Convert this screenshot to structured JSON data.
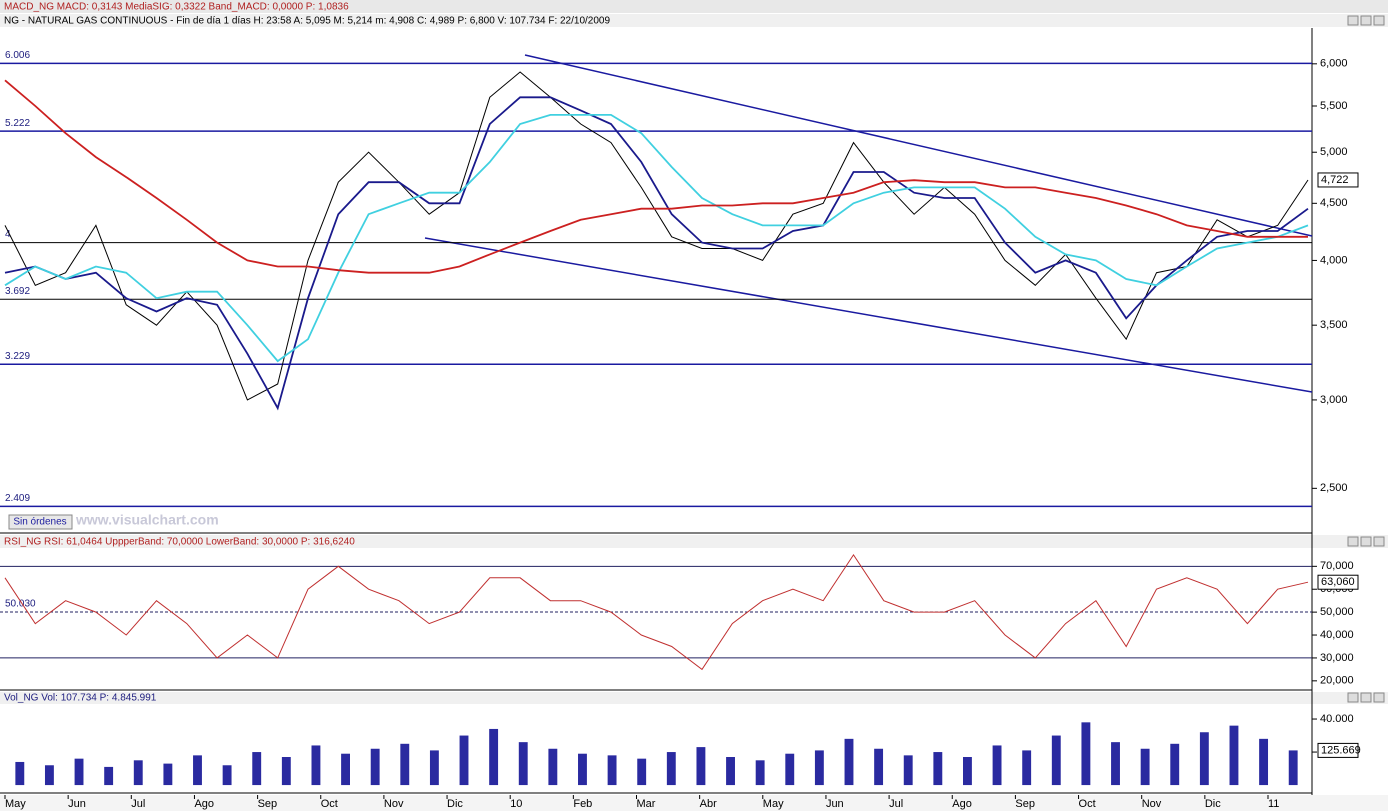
{
  "header": {
    "macd": "MACD_NG  MACD: 0,3143  MediaSIG: 0,3322  Band_MACD: 0,0000  P: 1,0836",
    "instrument": "NG - NATURAL GAS CONTINUOUS - Fin de día 1 días  H: 23:58  A: 5,095  M: 5,214  m: 4,908  C: 4,989  P: 6,800  V: 107.734  F: 22/10/2009",
    "rsi": "RSI_NG  RSI: 61,0464  UppperBand: 70,0000  LowerBand: 30,0000  P: 316,6240",
    "volume": "Vol_NG  Vol: 107.734  P: 4.845.991"
  },
  "button": "Sin órdenes",
  "watermark": "www.visualchart.com",
  "months": [
    "May",
    "Jun",
    "Jul",
    "Ago",
    "Sep",
    "Oct",
    "Nov",
    "Dic",
    "10",
    "Feb",
    "Mar",
    "Abr",
    "May",
    "Jun",
    "Jul",
    "Ago",
    "Sep",
    "Oct",
    "Nov",
    "Dic",
    "11"
  ],
  "chart_data": [
    {
      "type": "line",
      "log_scale": true,
      "ylim": [
        2280,
        6460
      ],
      "yticks": [
        {
          "value": 6000,
          "label": "6,000"
        },
        {
          "value": 5500,
          "label": "5,500"
        },
        {
          "value": 5000,
          "label": "5,000"
        },
        {
          "value": 4500,
          "label": "4,500"
        },
        {
          "value": 4000,
          "label": "4,000"
        },
        {
          "value": 3500,
          "label": "3,500"
        },
        {
          "value": 3000,
          "label": "3,000"
        },
        {
          "value": 2500,
          "label": "2,500"
        }
      ],
      "levels": [
        {
          "value": 6006,
          "label": "6.006"
        },
        {
          "value": 5222,
          "label": "5.222"
        },
        {
          "value": 4150,
          "label": "4"
        },
        {
          "value": 3692,
          "label": "3.692"
        },
        {
          "value": 3229,
          "label": "3.229"
        },
        {
          "value": 2409,
          "label": "2.409"
        }
      ],
      "last_label": "4,722",
      "series": [
        {
          "color": "#000000",
          "values": [
            4300,
            3800,
            3900,
            4300,
            3650,
            3500,
            3750,
            3500,
            3000,
            3100,
            4000,
            4700,
            5000,
            4700,
            4400,
            4600,
            5600,
            5900,
            5600,
            5300,
            5100,
            4650,
            4200,
            4100,
            4100,
            4000,
            4400,
            4500,
            5100,
            4700,
            4400,
            4650,
            4400,
            4000,
            3800,
            4050,
            3700,
            3400,
            3900,
            3950,
            4350,
            4200,
            4300,
            4722
          ]
        },
        {
          "color": "#1a1a8c",
          "values": [
            3900,
            3950,
            3850,
            3900,
            3700,
            3600,
            3700,
            3650,
            3300,
            2950,
            3700,
            4400,
            4700,
            4700,
            4500,
            4500,
            5300,
            5600,
            5600,
            5450,
            5300,
            4900,
            4400,
            4150,
            4100,
            4100,
            4250,
            4300,
            4800,
            4800,
            4600,
            4550,
            4550,
            4150,
            3900,
            4000,
            3900,
            3550,
            3800,
            4000,
            4200,
            4250,
            4250,
            4450
          ]
        },
        {
          "color": "#40d0e0",
          "values": [
            3800,
            3950,
            3850,
            3950,
            3900,
            3700,
            3750,
            3750,
            3500,
            3250,
            3400,
            3900,
            4400,
            4500,
            4600,
            4600,
            4900,
            5300,
            5400,
            5400,
            5400,
            5200,
            4850,
            4550,
            4400,
            4300,
            4300,
            4300,
            4500,
            4600,
            4650,
            4650,
            4650,
            4450,
            4200,
            4050,
            4000,
            3850,
            3800,
            3950,
            4100,
            4150,
            4200,
            4300
          ]
        },
        {
          "color": "#cc2020",
          "values": [
            5800,
            5500,
            5200,
            4950,
            4750,
            4550,
            4350,
            4150,
            4000,
            3950,
            3950,
            3920,
            3900,
            3900,
            3900,
            3950,
            4050,
            4150,
            4250,
            4350,
            4400,
            4450,
            4450,
            4480,
            4480,
            4500,
            4500,
            4550,
            4600,
            4700,
            4720,
            4700,
            4700,
            4650,
            4650,
            4600,
            4550,
            4480,
            4400,
            4300,
            4250,
            4200,
            4200,
            4200
          ]
        }
      ]
    },
    {
      "type": "line",
      "ylim": [
        16,
        78
      ],
      "yticks": [
        {
          "value": 70,
          "label": "70,000"
        },
        {
          "value": 60,
          "label": "60,000"
        },
        {
          "value": 50,
          "label": "50,000"
        },
        {
          "value": 40,
          "label": "40,000"
        },
        {
          "value": 30,
          "label": "30,000"
        },
        {
          "value": 20,
          "label": "20,000"
        }
      ],
      "levels": [
        {
          "value": 70
        },
        {
          "value": 50.03,
          "label": "50.030"
        },
        {
          "value": 30
        }
      ],
      "last_label": "63,060",
      "series": [
        {
          "color": "#c03030",
          "values": [
            65,
            45,
            55,
            50,
            40,
            55,
            45,
            30,
            40,
            30,
            60,
            70,
            60,
            55,
            45,
            50,
            65,
            65,
            55,
            55,
            50,
            40,
            35,
            25,
            45,
            55,
            60,
            55,
            75,
            55,
            50,
            50,
            55,
            40,
            30,
            45,
            55,
            35,
            60,
            65,
            60,
            45,
            60,
            63.06
          ]
        }
      ]
    },
    {
      "type": "bar",
      "ylim": [
        -4800,
        48500
      ],
      "yticks": [
        {
          "value": 40000,
          "label": "40.000"
        },
        {
          "value": 20000,
          "label": "20.000"
        }
      ],
      "last_label": "125.669",
      "color": "#2a2aa0",
      "values": [
        14000,
        12000,
        16000,
        11000,
        15000,
        13000,
        18000,
        12000,
        20000,
        17000,
        24000,
        19000,
        22000,
        25000,
        21000,
        30000,
        34000,
        26000,
        22000,
        19000,
        18000,
        16000,
        20000,
        23000,
        17000,
        15000,
        19000,
        21000,
        28000,
        22000,
        18000,
        20000,
        17000,
        24000,
        21000,
        30000,
        38000,
        26000,
        22000,
        25000,
        32000,
        36000,
        28000,
        21000
      ]
    }
  ]
}
